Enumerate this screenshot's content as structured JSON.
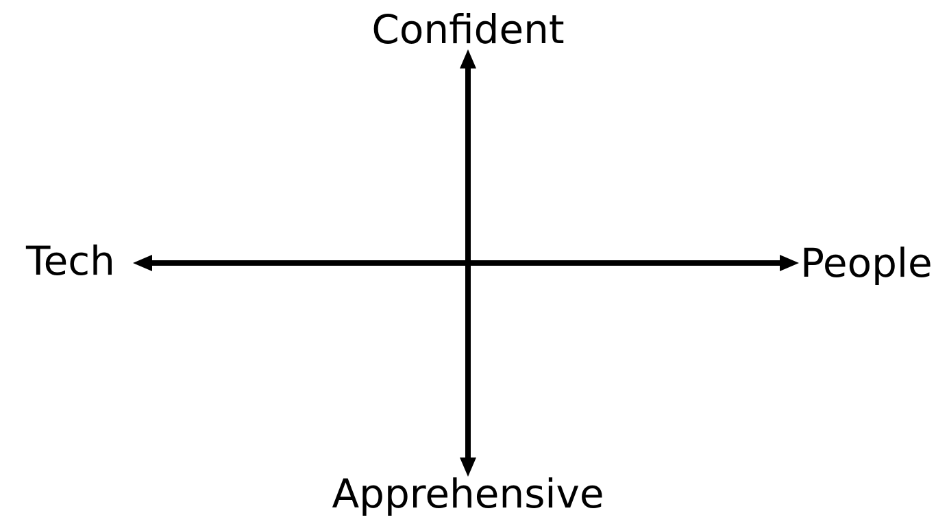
{
  "diagram": {
    "axis_color": "#000000",
    "background_color": "#ffffff",
    "labels": {
      "top": "Confident",
      "bottom": "Apprehensive",
      "left": "Tech",
      "right": "People"
    }
  }
}
